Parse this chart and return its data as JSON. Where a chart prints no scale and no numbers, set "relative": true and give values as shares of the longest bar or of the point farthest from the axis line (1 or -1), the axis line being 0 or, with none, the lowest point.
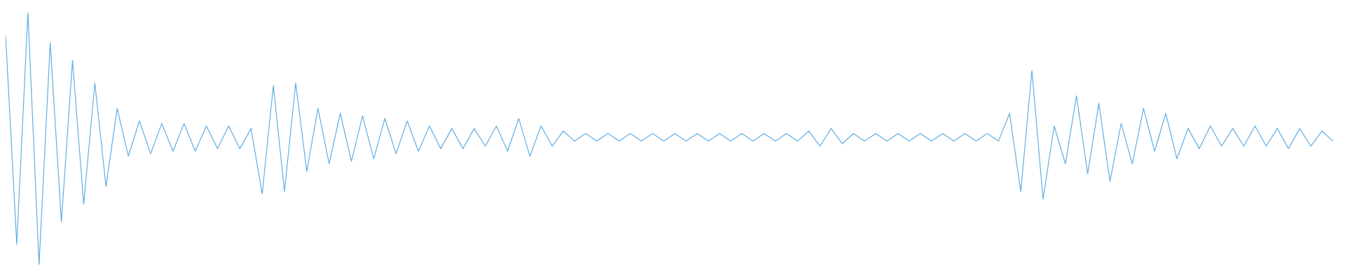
{
  "chart_data": {
    "type": "line",
    "relative": true,
    "categories": [
      null,
      null,
      null,
      null,
      null,
      null,
      null,
      null,
      null,
      null,
      null,
      null,
      null,
      null,
      null,
      null,
      null,
      null,
      null,
      null,
      null,
      null,
      null,
      null,
      null,
      null,
      null,
      null,
      null,
      null,
      null,
      null,
      null,
      null,
      null,
      null,
      null,
      null,
      null,
      null,
      null,
      null,
      null,
      null,
      null,
      null,
      null,
      null,
      null,
      null,
      null,
      null,
      null,
      null,
      null,
      null,
      null,
      null,
      null,
      null,
      null,
      null,
      null,
      null,
      null,
      null,
      null,
      null,
      null,
      null,
      null,
      null,
      null,
      null,
      null,
      null,
      null,
      null,
      null,
      null,
      null,
      null,
      null,
      null,
      null,
      null,
      null,
      null,
      null,
      null,
      null,
      null,
      null,
      null,
      null,
      null,
      null,
      null,
      null,
      null,
      null,
      null,
      null,
      null,
      null,
      null,
      null,
      null,
      null,
      null,
      null,
      null,
      null,
      null,
      null,
      null,
      null,
      null,
      null,
      null
    ],
    "series": [
      {
        "color": "#5faee3",
        "values": [
          0.91,
          0.08,
          1.0,
          0.0,
          0.88,
          0.17,
          0.81,
          0.24,
          0.72,
          0.31,
          0.62,
          0.43,
          0.57,
          0.44,
          0.56,
          0.45,
          0.56,
          0.45,
          0.55,
          0.46,
          0.55,
          0.46,
          0.54,
          0.28,
          0.71,
          0.29,
          0.72,
          0.37,
          0.62,
          0.4,
          0.6,
          0.41,
          0.59,
          0.42,
          0.58,
          0.44,
          0.57,
          0.45,
          0.55,
          0.46,
          0.54,
          0.46,
          0.54,
          0.47,
          0.55,
          0.45,
          0.58,
          0.43,
          0.55,
          0.47,
          0.53,
          0.49,
          0.52,
          0.49,
          0.52,
          0.49,
          0.52,
          0.49,
          0.52,
          0.49,
          0.52,
          0.49,
          0.52,
          0.49,
          0.52,
          0.49,
          0.52,
          0.49,
          0.52,
          0.49,
          0.52,
          0.49,
          0.53,
          0.47,
          0.54,
          0.48,
          0.52,
          0.49,
          0.52,
          0.49,
          0.52,
          0.49,
          0.52,
          0.49,
          0.52,
          0.49,
          0.52,
          0.49,
          0.52,
          0.49,
          0.6,
          0.29,
          0.77,
          0.26,
          0.55,
          0.4,
          0.67,
          0.36,
          0.64,
          0.33,
          0.56,
          0.4,
          0.62,
          0.45,
          0.6,
          0.42,
          0.54,
          0.46,
          0.55,
          0.47,
          0.54,
          0.47,
          0.55,
          0.47,
          0.54,
          0.46,
          0.54,
          0.47,
          0.53,
          0.49
        ]
      }
    ]
  }
}
